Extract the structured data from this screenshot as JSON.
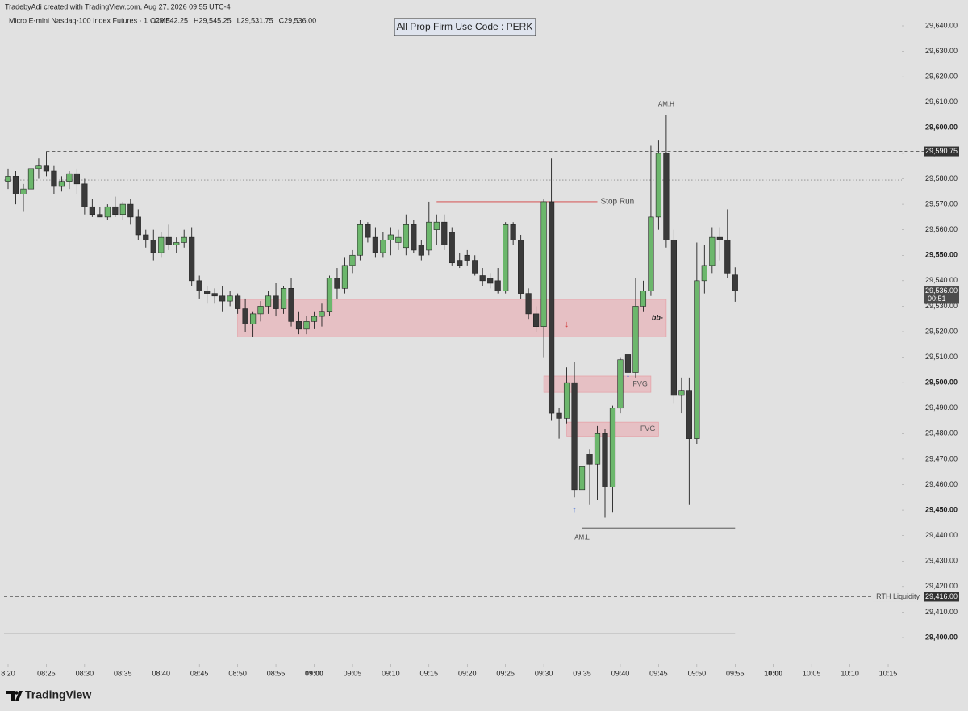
{
  "chart_data": {
    "type": "candlestick",
    "attribution": "TradebyAdi created with TradingView.com, Aug 27, 2026 09:55 UTC-4",
    "symbol": "Micro E-mini Nasdaq-100 Index Futures · 1 · CME",
    "legend_values": [
      "O29,542.25",
      "H29,545.25",
      "L29,531.75",
      "C29,536.00"
    ],
    "banner": "All Prop Firm Use Code : PERK",
    "watermark": "TradingView",
    "up_color": "#6cb76c",
    "down_color": "#3a3a3a",
    "border_color": "#222222",
    "xlim": [
      "08:20",
      "10:17"
    ],
    "ylim": [
      29400,
      29640
    ],
    "xticks": [
      {
        "value": "08:20",
        "label": "8:20"
      },
      "08:25",
      "08:30",
      "08:35",
      "08:40",
      "08:45",
      "08:50",
      "08:55",
      "09:00",
      "09:05",
      "09:10",
      "09:15",
      "09:20",
      "09:25",
      "09:30",
      "09:35",
      "09:40",
      "09:45",
      "09:50",
      "09:55",
      "10:00",
      "10:05",
      "10:10",
      "10:15"
    ],
    "yticks": [
      {
        "value": 29400,
        "label": "29,400.00"
      },
      {
        "value": 29410,
        "label": "29,410.00"
      },
      {
        "value": 29420,
        "label": "29,420.00"
      },
      {
        "value": 29430,
        "label": "29,430.00"
      },
      {
        "value": 29440,
        "label": "29,440.00"
      },
      {
        "value": 29450,
        "label": "29,450.00"
      },
      {
        "value": 29460,
        "label": "29,460.00"
      },
      {
        "value": 29470,
        "label": "29,470.00"
      },
      {
        "value": 29480,
        "label": "29,480.00"
      },
      {
        "value": 29490,
        "label": "29,490.00"
      },
      {
        "value": 29500,
        "label": "29,500.00"
      },
      {
        "value": 29510,
        "label": "29,510.00"
      },
      {
        "value": 29520,
        "label": "29,520.00"
      },
      {
        "value": 29530,
        "label": "29,530.00"
      },
      {
        "value": 29540,
        "label": "29,540.00"
      },
      {
        "value": 29550,
        "label": "29,550.00"
      },
      {
        "value": 29560,
        "label": "29,560.00"
      },
      {
        "value": 29570,
        "label": "29,570.00"
      },
      {
        "value": 29580,
        "label": "29,580.00"
      },
      {
        "value": 29590,
        "label": "29,590.00"
      },
      {
        "value": 29600,
        "label": "29,600.00"
      },
      {
        "value": 29610,
        "label": "29,610.00"
      },
      {
        "value": 29620,
        "label": "29,620.00"
      },
      {
        "value": 29630,
        "label": "29,630.00"
      },
      {
        "value": 29640,
        "label": "29,640.00"
      }
    ],
    "candles": [
      {
        "t": "08:20",
        "o": 29579,
        "h": 29584,
        "l": 29576,
        "c": 29581
      },
      {
        "t": "08:21",
        "o": 29581,
        "h": 29583,
        "l": 29570,
        "c": 29574
      },
      {
        "t": "08:22",
        "o": 29574,
        "h": 29578,
        "l": 29567,
        "c": 29576
      },
      {
        "t": "08:23",
        "o": 29576,
        "h": 29586,
        "l": 29573,
        "c": 29584
      },
      {
        "t": "08:24",
        "o": 29584,
        "h": 29588,
        "l": 29580,
        "c": 29585
      },
      {
        "t": "08:25",
        "o": 29585,
        "h": 29590.75,
        "l": 29581,
        "c": 29583
      },
      {
        "t": "08:26",
        "o": 29583,
        "h": 29585,
        "l": 29574,
        "c": 29577
      },
      {
        "t": "08:27",
        "o": 29577,
        "h": 29581,
        "l": 29575,
        "c": 29579
      },
      {
        "t": "08:28",
        "o": 29579,
        "h": 29583,
        "l": 29576,
        "c": 29582
      },
      {
        "t": "08:29",
        "o": 29582,
        "h": 29584,
        "l": 29574,
        "c": 29578
      },
      {
        "t": "08:30",
        "o": 29578,
        "h": 29580,
        "l": 29566,
        "c": 29569
      },
      {
        "t": "08:31",
        "o": 29569,
        "h": 29572,
        "l": 29565,
        "c": 29566
      },
      {
        "t": "08:32",
        "o": 29566,
        "h": 29569,
        "l": 29565,
        "c": 29565
      },
      {
        "t": "08:33",
        "o": 29565,
        "h": 29570,
        "l": 29564,
        "c": 29569
      },
      {
        "t": "08:34",
        "o": 29569,
        "h": 29573,
        "l": 29565,
        "c": 29566
      },
      {
        "t": "08:35",
        "o": 29566,
        "h": 29571,
        "l": 29564,
        "c": 29570
      },
      {
        "t": "08:36",
        "o": 29570,
        "h": 29572,
        "l": 29562,
        "c": 29565
      },
      {
        "t": "08:37",
        "o": 29565,
        "h": 29568,
        "l": 29556,
        "c": 29558
      },
      {
        "t": "08:38",
        "o": 29558,
        "h": 29560,
        "l": 29553,
        "c": 29556
      },
      {
        "t": "08:39",
        "o": 29556,
        "h": 29560,
        "l": 29548,
        "c": 29551
      },
      {
        "t": "08:40",
        "o": 29551,
        "h": 29559,
        "l": 29549,
        "c": 29557
      },
      {
        "t": "08:41",
        "o": 29557,
        "h": 29562,
        "l": 29552,
        "c": 29554
      },
      {
        "t": "08:42",
        "o": 29554,
        "h": 29557,
        "l": 29551,
        "c": 29555
      },
      {
        "t": "08:43",
        "o": 29555,
        "h": 29560,
        "l": 29553,
        "c": 29557
      },
      {
        "t": "08:44",
        "o": 29557,
        "h": 29561,
        "l": 29538,
        "c": 29540
      },
      {
        "t": "08:45",
        "o": 29540,
        "h": 29542,
        "l": 29533,
        "c": 29536
      },
      {
        "t": "08:46",
        "o": 29536,
        "h": 29538,
        "l": 29531,
        "c": 29535
      },
      {
        "t": "08:47",
        "o": 29535,
        "h": 29537,
        "l": 29531,
        "c": 29534
      },
      {
        "t": "08:48",
        "o": 29534,
        "h": 29538,
        "l": 29528,
        "c": 29532
      },
      {
        "t": "08:49",
        "o": 29532,
        "h": 29536,
        "l": 29530,
        "c": 29534
      },
      {
        "t": "08:50",
        "o": 29534,
        "h": 29535,
        "l": 29527,
        "c": 29529
      },
      {
        "t": "08:51",
        "o": 29529,
        "h": 29533,
        "l": 29520,
        "c": 29523
      },
      {
        "t": "08:52",
        "o": 29523,
        "h": 29528,
        "l": 29518,
        "c": 29527
      },
      {
        "t": "08:53",
        "o": 29527,
        "h": 29532,
        "l": 29524,
        "c": 29530
      },
      {
        "t": "08:54",
        "o": 29530,
        "h": 29536,
        "l": 29527,
        "c": 29534
      },
      {
        "t": "08:55",
        "o": 29534,
        "h": 29539,
        "l": 29526,
        "c": 29529
      },
      {
        "t": "08:56",
        "o": 29529,
        "h": 29538,
        "l": 29527,
        "c": 29537
      },
      {
        "t": "08:57",
        "o": 29537,
        "h": 29541,
        "l": 29522,
        "c": 29524
      },
      {
        "t": "08:58",
        "o": 29524,
        "h": 29528,
        "l": 29519,
        "c": 29521
      },
      {
        "t": "08:59",
        "o": 29521,
        "h": 29526,
        "l": 29519,
        "c": 29524
      },
      {
        "t": "09:00",
        "o": 29524,
        "h": 29528,
        "l": 29521,
        "c": 29526
      },
      {
        "t": "09:01",
        "o": 29526,
        "h": 29531,
        "l": 29522,
        "c": 29528
      },
      {
        "t": "09:02",
        "o": 29528,
        "h": 29542,
        "l": 29526,
        "c": 29541
      },
      {
        "t": "09:03",
        "o": 29541,
        "h": 29545,
        "l": 29533,
        "c": 29537
      },
      {
        "t": "09:04",
        "o": 29537,
        "h": 29549,
        "l": 29535,
        "c": 29546
      },
      {
        "t": "09:05",
        "o": 29546,
        "h": 29552,
        "l": 29543,
        "c": 29550
      },
      {
        "t": "09:06",
        "o": 29550,
        "h": 29564,
        "l": 29548,
        "c": 29562
      },
      {
        "t": "09:07",
        "o": 29562,
        "h": 29563,
        "l": 29555,
        "c": 29557
      },
      {
        "t": "09:08",
        "o": 29557,
        "h": 29561,
        "l": 29549,
        "c": 29551
      },
      {
        "t": "09:09",
        "o": 29551,
        "h": 29559,
        "l": 29549,
        "c": 29556
      },
      {
        "t": "09:10",
        "o": 29556,
        "h": 29561,
        "l": 29550,
        "c": 29558
      },
      {
        "t": "09:11",
        "o": 29555,
        "h": 29560,
        "l": 29552,
        "c": 29557
      },
      {
        "t": "09:12",
        "o": 29553,
        "h": 29566,
        "l": 29550,
        "c": 29562
      },
      {
        "t": "09:13",
        "o": 29562,
        "h": 29564,
        "l": 29551,
        "c": 29552
      },
      {
        "t": "09:14",
        "o": 29554,
        "h": 29556,
        "l": 29548,
        "c": 29550
      },
      {
        "t": "09:15",
        "o": 29552,
        "h": 29571,
        "l": 29550,
        "c": 29563
      },
      {
        "t": "09:16",
        "o": 29560,
        "h": 29566,
        "l": 29554,
        "c": 29563
      },
      {
        "t": "09:17",
        "o": 29563,
        "h": 29566,
        "l": 29552,
        "c": 29554
      },
      {
        "t": "09:18",
        "o": 29559,
        "h": 29561,
        "l": 29546,
        "c": 29547
      },
      {
        "t": "09:19",
        "o": 29548,
        "h": 29551,
        "l": 29545,
        "c": 29546
      },
      {
        "t": "09:20",
        "o": 29550,
        "h": 29552,
        "l": 29546,
        "c": 29548
      },
      {
        "t": "09:21",
        "o": 29548,
        "h": 29550,
        "l": 29542,
        "c": 29543
      },
      {
        "t": "09:22",
        "o": 29542,
        "h": 29545,
        "l": 29538,
        "c": 29540
      },
      {
        "t": "09:23",
        "o": 29541,
        "h": 29543,
        "l": 29537,
        "c": 29539
      },
      {
        "t": "09:24",
        "o": 29540,
        "h": 29545,
        "l": 29535,
        "c": 29536
      },
      {
        "t": "09:25",
        "o": 29536,
        "h": 29563,
        "l": 29535,
        "c": 29562
      },
      {
        "t": "09:26",
        "o": 29562,
        "h": 29563,
        "l": 29554,
        "c": 29556
      },
      {
        "t": "09:27",
        "o": 29556,
        "h": 29558,
        "l": 29533,
        "c": 29535
      },
      {
        "t": "09:28",
        "o": 29535,
        "h": 29537,
        "l": 29525,
        "c": 29527
      },
      {
        "t": "09:29",
        "o": 29527,
        "h": 29530,
        "l": 29520,
        "c": 29522
      },
      {
        "t": "09:30",
        "o": 29522,
        "h": 29572,
        "l": 29510,
        "c": 29571
      },
      {
        "t": "09:31",
        "o": 29571,
        "h": 29588,
        "l": 29485,
        "c": 29488
      },
      {
        "t": "09:32",
        "o": 29488,
        "h": 29490,
        "l": 29478,
        "c": 29486
      },
      {
        "t": "09:33",
        "o": 29486,
        "h": 29506,
        "l": 29484,
        "c": 29500
      },
      {
        "t": "09:34",
        "o": 29500,
        "h": 29508,
        "l": 29455,
        "c": 29458
      },
      {
        "t": "09:35",
        "o": 29458,
        "h": 29470,
        "l": 29449,
        "c": 29467
      },
      {
        "t": "09:36",
        "o": 29472,
        "h": 29474,
        "l": 29452,
        "c": 29468
      },
      {
        "t": "09:37",
        "o": 29468,
        "h": 29483,
        "l": 29454,
        "c": 29480
      },
      {
        "t": "09:38",
        "o": 29480,
        "h": 29482,
        "l": 29447,
        "c": 29459
      },
      {
        "t": "09:39",
        "o": 29459,
        "h": 29491,
        "l": 29449,
        "c": 29490
      },
      {
        "t": "09:40",
        "o": 29490,
        "h": 29510,
        "l": 29488,
        "c": 29509
      },
      {
        "t": "09:41",
        "o": 29511,
        "h": 29514,
        "l": 29502,
        "c": 29504
      },
      {
        "t": "09:42",
        "o": 29504,
        "h": 29541,
        "l": 29502,
        "c": 29530
      },
      {
        "t": "09:43",
        "o": 29530,
        "h": 29540,
        "l": 29528,
        "c": 29536
      },
      {
        "t": "09:44",
        "o": 29536,
        "h": 29593,
        "l": 29534,
        "c": 29565
      },
      {
        "t": "09:45",
        "o": 29565,
        "h": 29595,
        "l": 29560,
        "c": 29590
      },
      {
        "t": "09:46",
        "o": 29590,
        "h": 29605,
        "l": 29553,
        "c": 29556
      },
      {
        "t": "09:47",
        "o": 29556,
        "h": 29560,
        "l": 29492,
        "c": 29495
      },
      {
        "t": "09:48",
        "o": 29495,
        "h": 29502,
        "l": 29488,
        "c": 29497
      },
      {
        "t": "09:49",
        "o": 29497,
        "h": 29502,
        "l": 29452,
        "c": 29478
      },
      {
        "t": "09:50",
        "o": 29478,
        "h": 29555,
        "l": 29476,
        "c": 29540
      },
      {
        "t": "09:51",
        "o": 29540,
        "h": 29554,
        "l": 29535,
        "c": 29546
      },
      {
        "t": "09:52",
        "o": 29546,
        "h": 29561,
        "l": 29543,
        "c": 29557
      },
      {
        "t": "09:53",
        "o": 29557,
        "h": 29561,
        "l": 29548,
        "c": 29556
      },
      {
        "t": "09:54",
        "o": 29556,
        "h": 29568,
        "l": 29541,
        "c": 29543
      },
      {
        "t": "09:55",
        "o": 29542.25,
        "h": 29545.25,
        "l": 29531.75,
        "c": 29536
      }
    ],
    "zones": [
      {
        "start": "08:50",
        "end": "09:46",
        "top": 29532.7,
        "bottom": 29518,
        "label": "bb-",
        "label_style": "bold"
      },
      {
        "start": "09:30",
        "end": "09:44",
        "top": 29502.6,
        "bottom": 29496.2,
        "label": "FVG",
        "label_style": "normal"
      },
      {
        "start": "09:33",
        "end": "09:45",
        "top": 29484.5,
        "bottom": 29479,
        "label": "FVG",
        "label_style": "normal"
      }
    ],
    "lines": [
      {
        "value": 29605,
        "start": "09:46",
        "end": "09:55",
        "style": "solid",
        "color": "#444444",
        "label": "AM.H",
        "label_position": "above"
      },
      {
        "value": 29443,
        "start": "09:35",
        "end": "09:55",
        "style": "solid",
        "color": "#444444",
        "label": "AM.L",
        "label_position": "below"
      },
      {
        "value": 29571,
        "start": "09:16",
        "end": "09:37",
        "style": "solid",
        "color": "#d23c3c",
        "label": "Stop Run",
        "label_position": "right"
      },
      {
        "value": 29579.5,
        "style": "dotted",
        "color": "#8a8a8a"
      },
      {
        "value": 29401.5,
        "end": "09:55",
        "style": "solid",
        "color": "#333333"
      }
    ],
    "price_labels": [
      {
        "value": 29590.75,
        "label": "29,590.75",
        "start": "08:25",
        "style": "dashed"
      },
      {
        "value": 29536,
        "label": "29,536.00",
        "countdown": "00:51",
        "style": "dotted"
      },
      {
        "value": 29416,
        "label": "29,416.00",
        "name": "RTH Liquidity",
        "style": "dashed"
      }
    ],
    "markers": [
      {
        "t": "09:33",
        "price": 29522.8,
        "symbol": "↓",
        "color": "#d23c3c"
      },
      {
        "t": "09:34",
        "price": 29450,
        "symbol": "↑",
        "color": "#2a5bd7"
      },
      {
        "t": "09:41",
        "price": 29502,
        "symbol": "↑",
        "color": "#2a5bd7"
      }
    ]
  }
}
